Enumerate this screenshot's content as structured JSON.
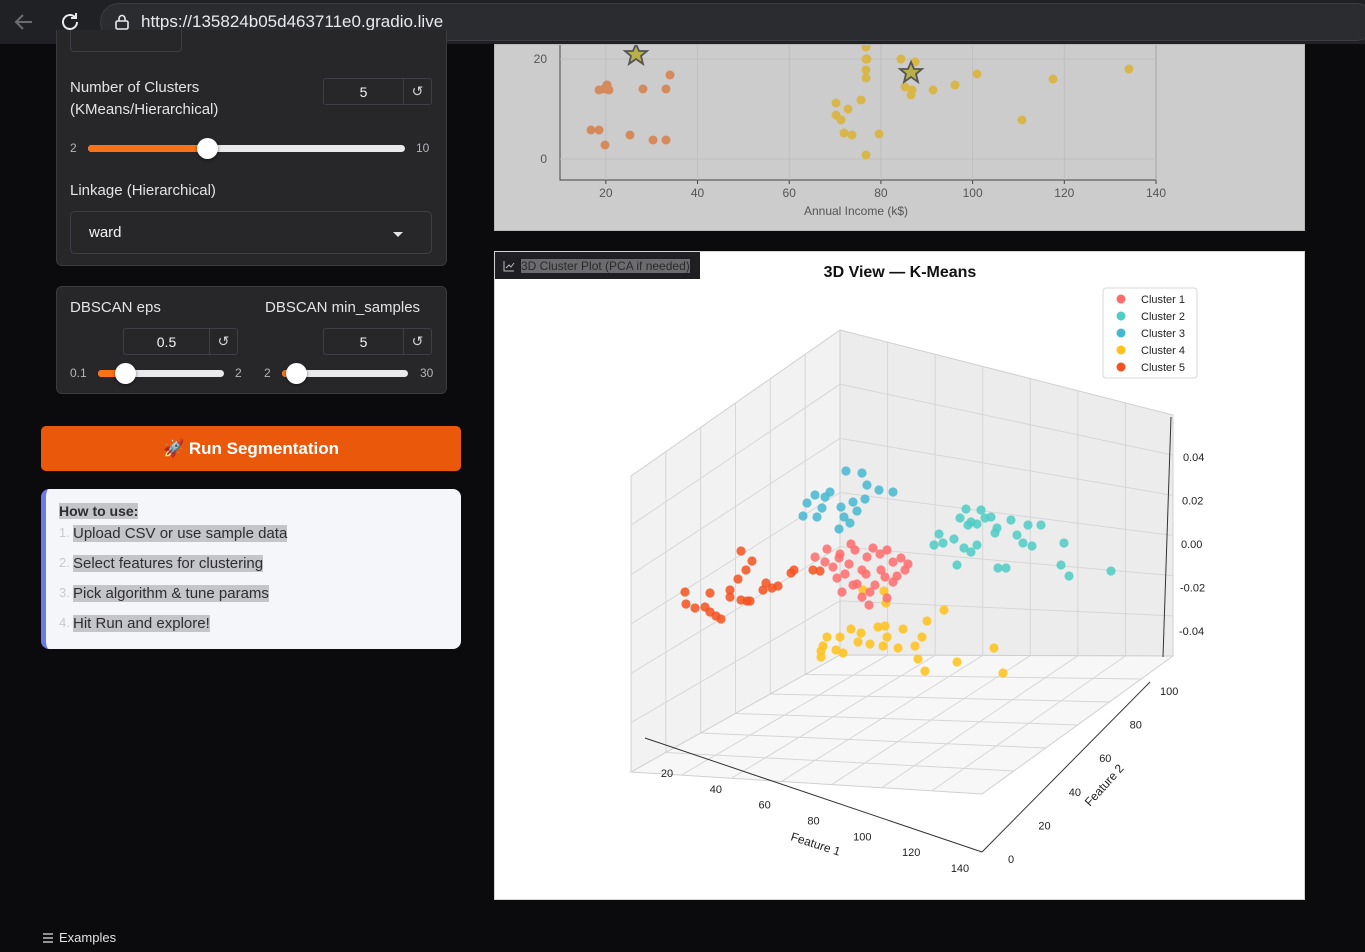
{
  "browser": {
    "url": "https://135824b05d463711e0.gradio.live"
  },
  "clusters": {
    "label_line1": "Number of Clusters",
    "label_line2": "(KMeans/Hierarchical)",
    "value": "5",
    "min_label": "2",
    "max_label": "10",
    "min": 2,
    "max": 10,
    "current": 5
  },
  "linkage": {
    "label": "Linkage (Hierarchical)",
    "value": "ward"
  },
  "dbscan_eps": {
    "label": "DBSCAN eps",
    "value": "0.5",
    "min_label": "0.1",
    "max_label": "2",
    "min": 0.1,
    "max": 2,
    "current": 0.5
  },
  "dbscan_min_samples": {
    "label": "DBSCAN min_samples",
    "value": "5",
    "min_label": "2",
    "max_label": "30",
    "min": 2,
    "max": 30,
    "current": 5
  },
  "reset_symbol": "↺",
  "run_button": {
    "icon": "rocket-icon",
    "label": "🚀 Run Segmentation"
  },
  "how_to": {
    "title": "How to use:",
    "steps": [
      {
        "num": "1.",
        "text": "Upload CSV or use sample data"
      },
      {
        "num": "2.",
        "text": "Select features for clustering"
      },
      {
        "num": "3.",
        "text": "Pick algorithm & tune params"
      },
      {
        "num": "4.",
        "text": "Hit Run and explore!"
      }
    ]
  },
  "plot_2d": {
    "xlabel": "Annual Income (k$)",
    "xticks": [
      "20",
      "40",
      "60",
      "80",
      "100",
      "120",
      "140"
    ],
    "yticks": [
      "0",
      "20"
    ]
  },
  "plot_3d": {
    "panel_label": "3D Cluster Plot (PCA if needed)",
    "title": "3D View — K-Means",
    "legend": [
      {
        "name": "Cluster 1",
        "color": "#ff6b6b"
      },
      {
        "name": "Cluster 2",
        "color": "#4ecdc4"
      },
      {
        "name": "Cluster 3",
        "color": "#45b7d1"
      },
      {
        "name": "Cluster 4",
        "color": "#ffc21a"
      },
      {
        "name": "Cluster 5",
        "color": "#f4511e"
      }
    ],
    "xlabel": "Feature 1",
    "ylabel": "Feature 2",
    "xticks": [
      "20",
      "40",
      "60",
      "80",
      "100",
      "120",
      "140"
    ],
    "yticks": [
      "0",
      "20",
      "40",
      "60",
      "80",
      "100"
    ],
    "zticks": [
      "0.04",
      "0.02",
      "0.00",
      "-0.02",
      "-0.04"
    ]
  },
  "footer": {
    "examples_label": "Examples"
  }
}
